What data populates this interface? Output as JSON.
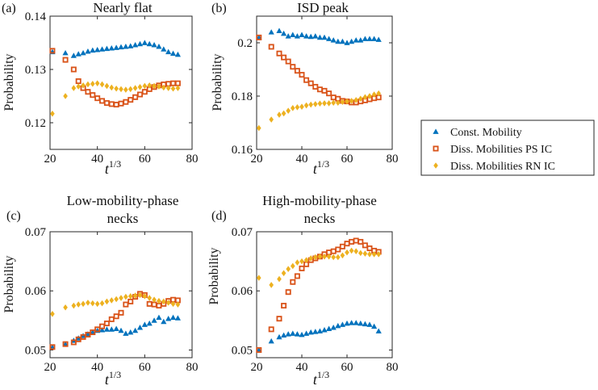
{
  "chart_data": [
    {
      "type": "scatter",
      "panel": "(a)",
      "title": "Nearly flat",
      "xlabel_base": "t",
      "xlabel_sup": "1/3",
      "ylabel": "Probability",
      "xlim": [
        20,
        80
      ],
      "ylim": [
        0.115,
        0.14
      ],
      "xticks": [
        "20",
        "40",
        "60",
        "80"
      ],
      "yticks": [
        "0.12",
        "0.13",
        "0.14"
      ],
      "ytick_values": [
        0.12,
        0.13,
        0.14
      ],
      "series": [
        {
          "name": "Const. Mobility",
          "x": [
            21,
            26.5,
            30,
            32,
            34,
            36,
            38,
            40,
            42,
            44,
            46,
            48,
            50,
            52,
            54,
            56,
            58,
            60,
            62,
            64,
            66,
            68,
            70,
            72,
            74
          ],
          "y": [
            0.1333,
            0.1331,
            0.1326,
            0.1329,
            0.1331,
            0.1334,
            0.1336,
            0.1337,
            0.1338,
            0.1339,
            0.134,
            0.1341,
            0.1342,
            0.1343,
            0.1344,
            0.1346,
            0.1348,
            0.135,
            0.1348,
            0.1346,
            0.1343,
            0.1338,
            0.1333,
            0.133,
            0.1328
          ]
        },
        {
          "name": "Diss. Mobilities PS IC",
          "x": [
            21,
            26.5,
            30,
            32,
            34,
            36,
            38,
            40,
            42,
            44,
            46,
            48,
            50,
            52,
            54,
            56,
            58,
            60,
            62,
            64,
            66,
            68,
            70,
            72,
            74
          ],
          "y": [
            0.1335,
            0.1318,
            0.13,
            0.1278,
            0.1265,
            0.1258,
            0.1252,
            0.1246,
            0.1241,
            0.1237,
            0.1235,
            0.1234,
            0.1236,
            0.1239,
            0.1243,
            0.1248,
            0.1253,
            0.1258,
            0.1263,
            0.1267,
            0.127,
            0.1272,
            0.1273,
            0.1274,
            0.1274
          ]
        },
        {
          "name": "Diss. Mobilities RN IC",
          "x": [
            21,
            26.5,
            30,
            32,
            34,
            36,
            38,
            40,
            42,
            44,
            46,
            48,
            50,
            52,
            54,
            56,
            58,
            60,
            62,
            64,
            66,
            68,
            70,
            72,
            74
          ],
          "y": [
            0.1217,
            0.125,
            0.1265,
            0.1268,
            0.127,
            0.1272,
            0.1273,
            0.1274,
            0.1272,
            0.1269,
            0.1266,
            0.1264,
            0.1263,
            0.1262,
            0.1263,
            0.1265,
            0.1267,
            0.1269,
            0.127,
            0.1269,
            0.1268,
            0.1266,
            0.1265,
            0.1264,
            0.1265
          ]
        }
      ]
    },
    {
      "type": "scatter",
      "panel": "(b)",
      "title": "ISD peak",
      "xlabel_base": "t",
      "xlabel_sup": "1/3",
      "ylabel": "Probability",
      "xlim": [
        20,
        80
      ],
      "ylim": [
        0.16,
        0.21
      ],
      "xticks": [
        "20",
        "40",
        "60",
        "80"
      ],
      "yticks": [
        "0.16",
        "0.18",
        "0.2"
      ],
      "ytick_values": [
        0.16,
        0.18,
        0.2
      ],
      "series": [
        {
          "name": "Const. Mobility",
          "x": [
            21,
            26.5,
            30,
            32,
            34,
            36,
            38,
            40,
            42,
            44,
            46,
            48,
            50,
            52,
            54,
            56,
            58,
            60,
            62,
            64,
            66,
            68,
            70,
            72,
            74
          ],
          "y": [
            0.202,
            0.204,
            0.2045,
            0.2035,
            0.2025,
            0.203,
            0.2025,
            0.203,
            0.2025,
            0.2023,
            0.2025,
            0.202,
            0.202,
            0.2015,
            0.201,
            0.2005,
            0.2005,
            0.2,
            0.2005,
            0.201,
            0.201,
            0.2015,
            0.2015,
            0.2015,
            0.2012
          ]
        },
        {
          "name": "Diss. Mobilities PS IC",
          "x": [
            21,
            26.5,
            30,
            32,
            34,
            36,
            38,
            40,
            42,
            44,
            46,
            48,
            50,
            52,
            54,
            56,
            58,
            60,
            62,
            64,
            66,
            68,
            70,
            72,
            74
          ],
          "y": [
            0.202,
            0.1985,
            0.196,
            0.1945,
            0.193,
            0.191,
            0.1895,
            0.188,
            0.186,
            0.1848,
            0.1835,
            0.1825,
            0.182,
            0.181,
            0.1795,
            0.179,
            0.1782,
            0.178,
            0.1776,
            0.1776,
            0.178,
            0.1784,
            0.1788,
            0.1792,
            0.1795
          ]
        },
        {
          "name": "Diss. Mobilities RN IC",
          "x": [
            21,
            26.5,
            30,
            32,
            34,
            36,
            38,
            40,
            42,
            44,
            46,
            48,
            50,
            52,
            54,
            56,
            58,
            60,
            62,
            64,
            66,
            68,
            70,
            72,
            74
          ],
          "y": [
            0.168,
            0.1712,
            0.173,
            0.1735,
            0.1745,
            0.1755,
            0.1758,
            0.176,
            0.1765,
            0.1768,
            0.177,
            0.1772,
            0.1773,
            0.1773,
            0.1775,
            0.1775,
            0.1778,
            0.178,
            0.1782,
            0.1785,
            0.179,
            0.1796,
            0.18,
            0.1806,
            0.181
          ]
        }
      ]
    },
    {
      "type": "scatter",
      "panel": "(c)",
      "title": "Low-mobility-phase necks",
      "title_line1": "Low-mobility-phase",
      "title_line2": "necks",
      "xlabel_base": "t",
      "xlabel_sup": "1/3",
      "ylabel": "Probability",
      "xlim": [
        20,
        80
      ],
      "ylim": [
        0.0487,
        0.07
      ],
      "xticks": [
        "20",
        "40",
        "60",
        "80"
      ],
      "yticks": [
        "0.05",
        "0.06",
        "0.07"
      ],
      "ytick_values": [
        0.05,
        0.06,
        0.07
      ],
      "series": [
        {
          "name": "Const. Mobility",
          "x": [
            21,
            26.5,
            30,
            32,
            34,
            36,
            38,
            40,
            42,
            44,
            46,
            48,
            50,
            52,
            54,
            56,
            58,
            60,
            62,
            64,
            66,
            68,
            70,
            72,
            74
          ],
          "y": [
            0.0505,
            0.051,
            0.0516,
            0.052,
            0.0524,
            0.0527,
            0.053,
            0.0533,
            0.0534,
            0.0535,
            0.0535,
            0.0536,
            0.0533,
            0.0528,
            0.053,
            0.0533,
            0.0538,
            0.0543,
            0.0545,
            0.055,
            0.0555,
            0.0548,
            0.0553,
            0.0555,
            0.0554
          ]
        },
        {
          "name": "Diss. Mobilities PS IC",
          "x": [
            21,
            26.5,
            30,
            32,
            34,
            36,
            38,
            40,
            42,
            44,
            46,
            48,
            50,
            52,
            54,
            56,
            58,
            60,
            62,
            64,
            66,
            68,
            70,
            72,
            74
          ],
          "y": [
            0.0505,
            0.051,
            0.0513,
            0.0518,
            0.0522,
            0.0526,
            0.053,
            0.0535,
            0.054,
            0.0545,
            0.0552,
            0.0557,
            0.0563,
            0.0577,
            0.0582,
            0.059,
            0.0595,
            0.0593,
            0.0578,
            0.0577,
            0.0575,
            0.0578,
            0.0583,
            0.0585,
            0.0584
          ]
        },
        {
          "name": "Diss. Mobilities RN IC",
          "x": [
            21,
            26.5,
            30,
            32,
            34,
            36,
            38,
            40,
            42,
            44,
            46,
            48,
            50,
            52,
            54,
            56,
            58,
            60,
            62,
            64,
            66,
            68,
            70,
            72,
            74
          ],
          "y": [
            0.0561,
            0.0572,
            0.0575,
            0.0577,
            0.0578,
            0.058,
            0.0579,
            0.0578,
            0.0579,
            0.0582,
            0.0584,
            0.0586,
            0.0588,
            0.059,
            0.0591,
            0.0592,
            0.0593,
            0.0591,
            0.0588,
            0.0585,
            0.0583,
            0.0582,
            0.058,
            0.0578,
            0.0577
          ]
        }
      ]
    },
    {
      "type": "scatter",
      "panel": "(d)",
      "title": "High-mobility-phase necks",
      "title_line1": "High-mobility-phase",
      "title_line2": "necks",
      "xlabel_base": "t",
      "xlabel_sup": "1/3",
      "ylabel": "Probability",
      "xlim": [
        20,
        80
      ],
      "ylim": [
        0.0487,
        0.07
      ],
      "xticks": [
        "20",
        "40",
        "60",
        "80"
      ],
      "yticks": [
        "0.05",
        "0.06",
        "0.07"
      ],
      "ytick_values": [
        0.05,
        0.06,
        0.07
      ],
      "series": [
        {
          "name": "Const. Mobility",
          "x": [
            21,
            26.5,
            30,
            32,
            34,
            36,
            38,
            40,
            42,
            44,
            46,
            48,
            50,
            52,
            54,
            56,
            58,
            60,
            62,
            64,
            66,
            68,
            70,
            72,
            74
          ],
          "y": [
            0.05,
            0.0515,
            0.0522,
            0.0525,
            0.0527,
            0.0528,
            0.0527,
            0.0526,
            0.0528,
            0.053,
            0.0531,
            0.0532,
            0.0534,
            0.0536,
            0.0538,
            0.0541,
            0.0543,
            0.0545,
            0.0546,
            0.0546,
            0.0545,
            0.0544,
            0.0543,
            0.054,
            0.0532
          ]
        },
        {
          "name": "Diss. Mobilities PS IC",
          "x": [
            21,
            26.5,
            30,
            32,
            34,
            36,
            38,
            40,
            42,
            44,
            46,
            48,
            50,
            52,
            54,
            56,
            58,
            60,
            62,
            64,
            66,
            68,
            70,
            72,
            74
          ],
          "y": [
            0.05,
            0.0535,
            0.0553,
            0.0575,
            0.0598,
            0.0615,
            0.0625,
            0.0638,
            0.0645,
            0.0652,
            0.0655,
            0.0658,
            0.0662,
            0.0665,
            0.0667,
            0.067,
            0.0675,
            0.068,
            0.0683,
            0.0685,
            0.0683,
            0.0677,
            0.0672,
            0.0668,
            0.0666
          ]
        },
        {
          "name": "Diss. Mobilities RN IC",
          "x": [
            21,
            26.5,
            30,
            32,
            34,
            36,
            38,
            40,
            42,
            44,
            46,
            48,
            50,
            52,
            54,
            56,
            58,
            60,
            62,
            64,
            66,
            68,
            70,
            72,
            74
          ],
          "y": [
            0.0622,
            0.061,
            0.062,
            0.063,
            0.0637,
            0.0642,
            0.0648,
            0.065,
            0.0652,
            0.0655,
            0.0657,
            0.0658,
            0.0658,
            0.0658,
            0.0657,
            0.0657,
            0.066,
            0.0665,
            0.0668,
            0.0667,
            0.0664,
            0.0663,
            0.0662,
            0.0662,
            0.0662
          ]
        }
      ]
    }
  ],
  "legend": {
    "items": [
      {
        "label": "Const. Mobility",
        "marker": "triangle",
        "color": "#0072BD"
      },
      {
        "label": "Diss. Mobilities PS IC",
        "marker": "square",
        "color": "#D95319"
      },
      {
        "label": "Diss. Mobilities RN IC",
        "marker": "diamond",
        "color": "#EDB120"
      }
    ]
  },
  "colors": {
    "const": "#0072BD",
    "ps": "#D95319",
    "rn": "#EDB120"
  }
}
